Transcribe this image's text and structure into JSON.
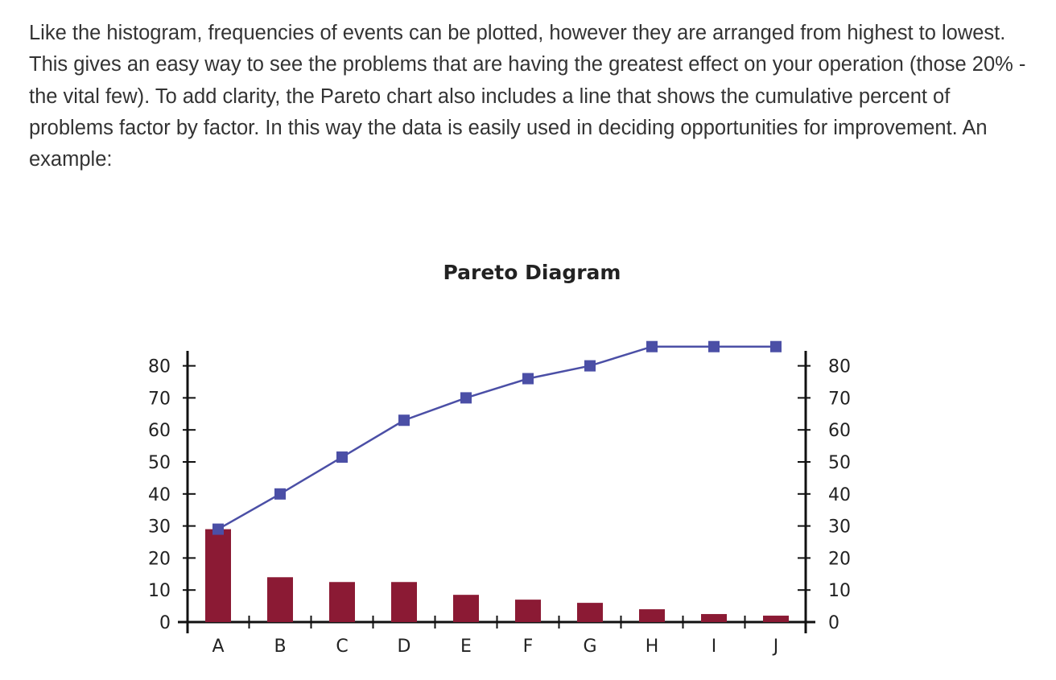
{
  "page": {
    "paragraph": "Like the histogram, frequencies of events can be plotted, however they are arranged from highest to lowest. This gives an easy way to see the problems that are having the greatest effect on your operation (those 20% - the vital few). To add clarity, the Pareto chart also includes a line that shows the cumulative percent of problems factor by factor. In this way the data is easily used in deciding opportunities for improvement. An example:"
  },
  "chart_data": {
    "type": "bar",
    "title": "Pareto Diagram",
    "xlabel": "",
    "ylabel": "",
    "categories": [
      "A",
      "B",
      "C",
      "D",
      "E",
      "F",
      "G",
      "H",
      "I",
      "J"
    ],
    "series": [
      {
        "type": "bar",
        "values": [
          29,
          14,
          12.5,
          12.5,
          8.5,
          7,
          6,
          4,
          2.5,
          2
        ],
        "color": "#8b1a34"
      },
      {
        "type": "line",
        "values": [
          29,
          40,
          51.5,
          63,
          70,
          76,
          80,
          86,
          86,
          86
        ],
        "color": "#4b4fa6",
        "marker": "square"
      }
    ],
    "ylim": [
      0,
      80
    ],
    "yticks": [
      0,
      10,
      20,
      30,
      40,
      50,
      60,
      70,
      80
    ],
    "y2ticks": [
      0,
      10,
      20,
      30,
      40,
      50,
      60,
      70,
      80
    ],
    "grid": false,
    "legend": "none"
  }
}
